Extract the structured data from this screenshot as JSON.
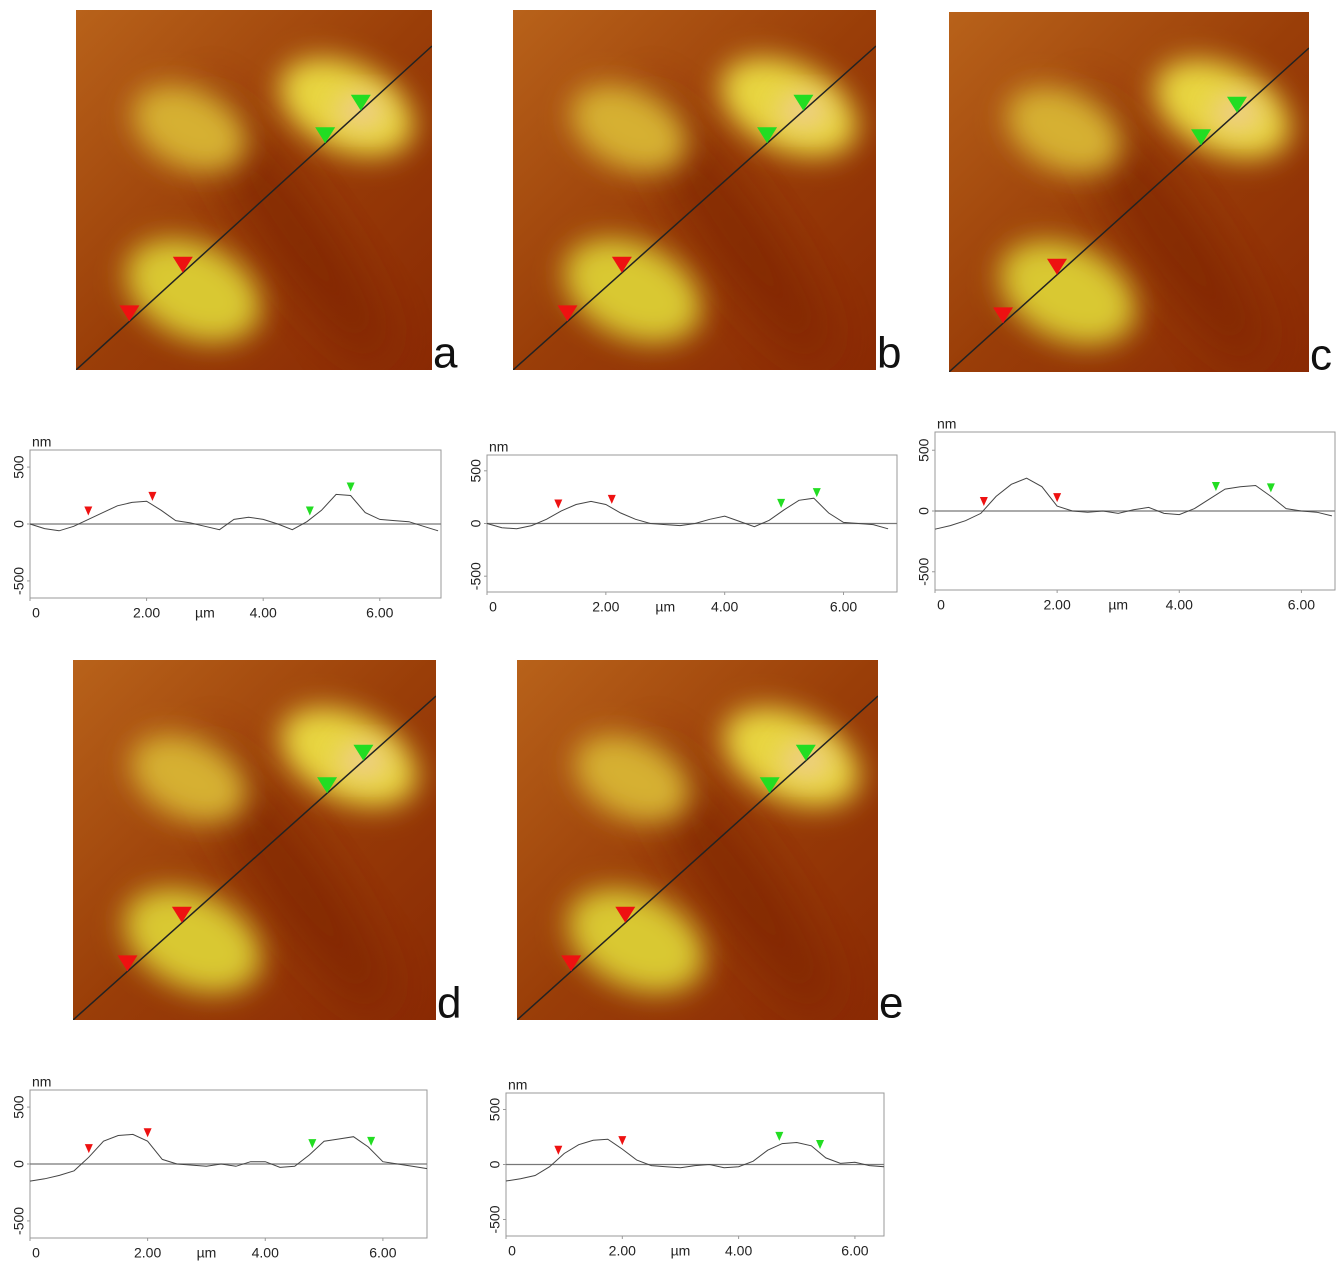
{
  "chart_data": [
    {
      "type": "line",
      "panel_label": "a",
      "ylabel": "nm",
      "xlabel": "µm",
      "xlim": [
        0,
        7.05
      ],
      "ylim": [
        -650,
        650
      ],
      "xticks": [
        0,
        {
          "value": 2,
          "label": "2.00"
        },
        {
          "value": 4,
          "label": "4.00"
        },
        {
          "value": 6,
          "label": "6.00"
        }
      ],
      "yticks": [
        -500,
        0,
        500
      ],
      "hline": 0,
      "x": [
        0,
        0.25,
        0.5,
        0.75,
        1,
        1.25,
        1.5,
        1.75,
        2,
        2.25,
        2.5,
        2.75,
        3,
        3.25,
        3.5,
        3.75,
        4,
        4.25,
        4.5,
        4.75,
        5,
        5.25,
        5.5,
        5.75,
        6,
        6.25,
        6.5,
        6.75,
        7
      ],
      "series": [
        {
          "color": "#444444",
          "values": [
            0,
            -40,
            -60,
            -20,
            40,
            100,
            160,
            190,
            200,
            120,
            30,
            10,
            -20,
            -50,
            40,
            60,
            40,
            0,
            -50,
            20,
            120,
            260,
            250,
            100,
            40,
            30,
            20,
            -20,
            -60
          ]
        }
      ],
      "cursors": [
        {
          "color": "#ee1111",
          "x": [
            1.0,
            2.1
          ]
        },
        {
          "color": "#22dd22",
          "x": [
            4.8,
            5.5
          ]
        }
      ]
    },
    {
      "type": "line",
      "panel_label": "b",
      "ylabel": "nm",
      "xlabel": "µm",
      "xlim": [
        0,
        6.9
      ],
      "ylim": [
        -650,
        650
      ],
      "xticks": [
        0,
        {
          "value": 2,
          "label": "2.00"
        },
        {
          "value": 4,
          "label": "4.00"
        },
        {
          "value": 6,
          "label": "6.00"
        }
      ],
      "yticks": [
        -500,
        0,
        500
      ],
      "hline": 0,
      "x": [
        0,
        0.25,
        0.5,
        0.75,
        1,
        1.25,
        1.5,
        1.75,
        2,
        2.25,
        2.5,
        2.75,
        3,
        3.25,
        3.5,
        3.75,
        4,
        4.25,
        4.5,
        4.75,
        5,
        5.25,
        5.5,
        5.75,
        6,
        6.25,
        6.5,
        6.75
      ],
      "series": [
        {
          "color": "#444444",
          "values": [
            0,
            -40,
            -50,
            -20,
            40,
            120,
            180,
            210,
            180,
            100,
            40,
            0,
            -10,
            -20,
            0,
            40,
            70,
            20,
            -30,
            30,
            130,
            220,
            240,
            100,
            10,
            0,
            -10,
            -50
          ]
        }
      ],
      "cursors": [
        {
          "color": "#ee1111",
          "x": [
            1.2,
            2.1
          ]
        },
        {
          "color": "#22dd22",
          "x": [
            4.95,
            5.55
          ]
        }
      ]
    },
    {
      "type": "line",
      "panel_label": "c",
      "ylabel": "nm",
      "xlabel": "µm",
      "xlim": [
        0,
        6.55
      ],
      "ylim": [
        -650,
        650
      ],
      "xticks": [
        0,
        {
          "value": 2,
          "label": "2.00"
        },
        {
          "value": 4,
          "label": "4.00"
        },
        {
          "value": 6,
          "label": "6.00"
        }
      ],
      "yticks": [
        -500,
        0,
        500
      ],
      "hline": 0,
      "x": [
        0,
        0.25,
        0.5,
        0.75,
        1,
        1.25,
        1.5,
        1.75,
        2,
        2.25,
        2.5,
        2.75,
        3,
        3.25,
        3.5,
        3.75,
        4,
        4.25,
        4.5,
        4.75,
        5,
        5.25,
        5.5,
        5.75,
        6,
        6.25,
        6.5
      ],
      "series": [
        {
          "color": "#444444",
          "values": [
            -150,
            -120,
            -80,
            -20,
            120,
            220,
            270,
            200,
            40,
            0,
            -10,
            0,
            -20,
            10,
            30,
            -20,
            -30,
            20,
            100,
            180,
            200,
            210,
            120,
            20,
            0,
            -10,
            -40
          ]
        }
      ],
      "cursors": [
        {
          "color": "#ee1111",
          "x": [
            0.8,
            2.0
          ]
        },
        {
          "color": "#22dd22",
          "x": [
            4.6,
            5.5
          ]
        }
      ]
    },
    {
      "type": "line",
      "panel_label": "d",
      "ylabel": "nm",
      "xlabel": "µm",
      "xlim": [
        0,
        6.75
      ],
      "ylim": [
        -650,
        650
      ],
      "xticks": [
        0,
        {
          "value": 2,
          "label": "2.00"
        },
        {
          "value": 4,
          "label": "4.00"
        },
        {
          "value": 6,
          "label": "6.00"
        }
      ],
      "yticks": [
        -500,
        0,
        500
      ],
      "hline": 0,
      "x": [
        0,
        0.25,
        0.5,
        0.75,
        1,
        1.25,
        1.5,
        1.75,
        2,
        2.25,
        2.5,
        2.75,
        3,
        3.25,
        3.5,
        3.75,
        4,
        4.25,
        4.5,
        4.75,
        5,
        5.25,
        5.5,
        5.75,
        6,
        6.25,
        6.5,
        6.75
      ],
      "series": [
        {
          "color": "#444444",
          "values": [
            -150,
            -130,
            -100,
            -60,
            60,
            200,
            250,
            260,
            200,
            40,
            0,
            -10,
            -20,
            0,
            -20,
            20,
            20,
            -30,
            -20,
            80,
            200,
            220,
            240,
            150,
            20,
            0,
            -20,
            -40
          ]
        }
      ],
      "cursors": [
        {
          "color": "#ee1111",
          "x": [
            1.0,
            2.0
          ]
        },
        {
          "color": "#22dd22",
          "x": [
            4.8,
            5.8
          ]
        }
      ]
    },
    {
      "type": "line",
      "panel_label": "e",
      "ylabel": "nm",
      "xlabel": "µm",
      "xlim": [
        0,
        6.5
      ],
      "ylim": [
        -650,
        650
      ],
      "xticks": [
        0,
        {
          "value": 2,
          "label": "2.00"
        },
        {
          "value": 4,
          "label": "4.00"
        },
        {
          "value": 6,
          "label": "6.00"
        }
      ],
      "yticks": [
        -500,
        0,
        500
      ],
      "hline": 0,
      "x": [
        0,
        0.25,
        0.5,
        0.75,
        1,
        1.25,
        1.5,
        1.75,
        2,
        2.25,
        2.5,
        2.75,
        3,
        3.25,
        3.5,
        3.75,
        4,
        4.25,
        4.5,
        4.75,
        5,
        5.25,
        5.5,
        5.75,
        6,
        6.25,
        6.5
      ],
      "series": [
        {
          "color": "#444444",
          "values": [
            -150,
            -130,
            -100,
            -20,
            100,
            180,
            220,
            230,
            140,
            40,
            -10,
            -20,
            -30,
            -10,
            0,
            -30,
            -20,
            30,
            130,
            190,
            200,
            170,
            60,
            10,
            20,
            -10,
            -20
          ]
        }
      ],
      "cursors": [
        {
          "color": "#ee1111",
          "x": [
            0.9,
            2.0
          ]
        },
        {
          "color": "#22dd22",
          "x": [
            4.7,
            5.4
          ]
        }
      ]
    }
  ]
}
